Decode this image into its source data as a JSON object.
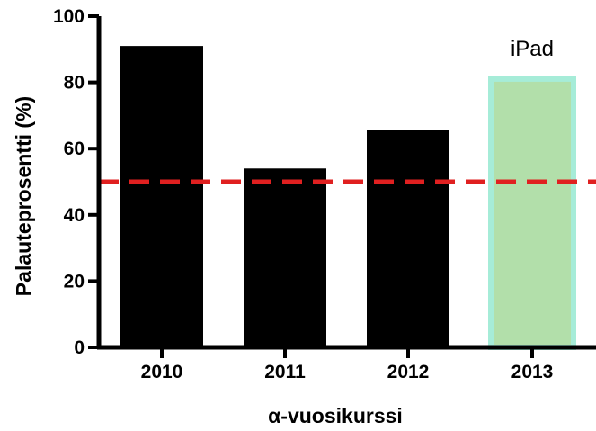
{
  "chart_data": {
    "type": "bar",
    "categories": [
      "2010",
      "2011",
      "2012",
      "2013"
    ],
    "values": [
      91,
      54,
      65.5,
      81
    ],
    "highlight": {
      "category": "2013",
      "fill": "#b2dfaa",
      "stroke": "#a6ecd8"
    },
    "bar_color": "#000000",
    "ylabel": "Palauteprosentti (%)",
    "xlabel": "α-vuosikurssi",
    "ylim": [
      0,
      100
    ],
    "yticks": [
      "0",
      "20",
      "40",
      "60",
      "80",
      "100"
    ],
    "reference_line": {
      "y": 50,
      "color": "#e02020",
      "style": "dashed"
    },
    "annotation": {
      "text": "iPad",
      "category": "2013"
    },
    "grid": false,
    "legend": "none"
  }
}
